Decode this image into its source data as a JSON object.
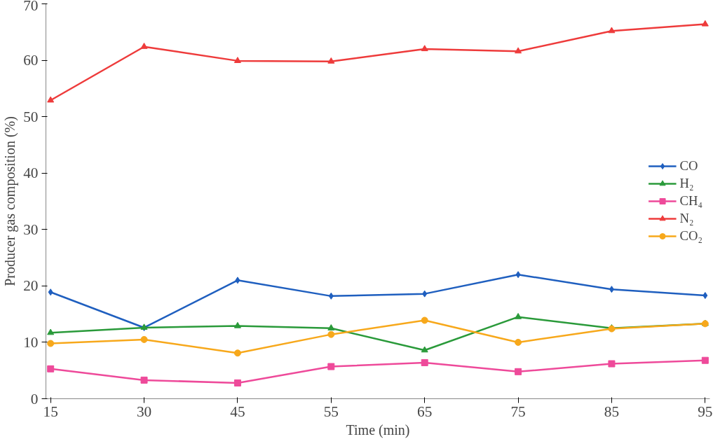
{
  "chart_data": {
    "type": "line",
    "xlabel": "Time (min)",
    "ylabel": "Producer gas composition (%)",
    "categories": [
      "15",
      "30",
      "45",
      "55",
      "65",
      "75",
      "85",
      "95"
    ],
    "ylim": [
      0,
      70
    ],
    "yticks": [
      0,
      10,
      20,
      30,
      40,
      50,
      60,
      70
    ],
    "grid": false,
    "legend": "right",
    "series": [
      {
        "name": "CO",
        "color": "#1f5fbf",
        "marker": "diamond",
        "values": [
          18.9,
          12.6,
          21,
          18.2,
          18.6,
          22,
          19.4,
          18.3
        ]
      },
      {
        "name": "H₂",
        "color": "#2a9a3a",
        "marker": "triangle",
        "values": [
          11.7,
          12.6,
          12.9,
          12.5,
          8.6,
          14.5,
          12.5,
          13.3
        ]
      },
      {
        "name": "CH₄",
        "color": "#ee4a9a",
        "marker": "square",
        "values": [
          5.3,
          3.3,
          2.8,
          5.7,
          6.4,
          4.8,
          6.2,
          6.8
        ]
      },
      {
        "name": "N₂",
        "color": "#ee3b3b",
        "marker": "triangle",
        "values": [
          52.9,
          62.4,
          59.9,
          59.8,
          62,
          61.6,
          65.2,
          66.4
        ]
      },
      {
        "name": "CO₂",
        "color": "#f7a81b",
        "marker": "circle",
        "values": [
          9.8,
          10.5,
          8.1,
          11.4,
          13.9,
          10,
          12.4,
          13.3
        ]
      }
    ]
  }
}
